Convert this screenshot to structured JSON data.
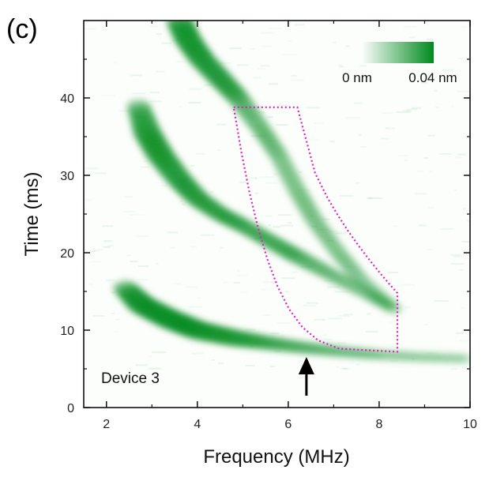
{
  "panel_label": "(c)",
  "chart_data": {
    "type": "heatmap",
    "xlabel": "Frequency (MHz)",
    "ylabel": "Time (ms)",
    "xlim": [
      1.5,
      10
    ],
    "ylim": [
      0,
      50
    ],
    "xticks": [
      2,
      4,
      6,
      8,
      10
    ],
    "yticks": [
      0,
      10,
      20,
      30,
      40
    ],
    "minor_ticks": true,
    "grid": false,
    "colorbar": {
      "min_label": "0 nm",
      "max_label": "0.04 nm",
      "min_color": "#ffffff",
      "max_color": "#008a1e",
      "placement": "top-right"
    },
    "annotation_text": "Device 3",
    "arrow": {
      "x": 6.4,
      "pointing": "up"
    },
    "highlight_region": {
      "color": "#e020c8",
      "style": "dotted",
      "corners": [
        [
          4.8,
          38.8
        ],
        [
          6.2,
          38.8
        ],
        [
          8.4,
          14.8
        ],
        [
          8.4,
          7.2
        ]
      ]
    },
    "bands": [
      {
        "name_hidden": true,
        "points": [
          [
            2.4,
            15.5
          ],
          [
            2.8,
            13.2
          ],
          [
            3.4,
            11.4
          ],
          [
            4.0,
            10.0
          ],
          [
            4.8,
            9.0
          ],
          [
            5.6,
            8.3
          ],
          [
            6.4,
            7.7
          ],
          [
            7.2,
            7.2
          ],
          [
            8.0,
            6.8
          ],
          [
            9.0,
            6.5
          ],
          [
            10.0,
            6.3
          ]
        ],
        "intensity": [
          0.55,
          0.85,
          0.9,
          0.85,
          0.7,
          0.45,
          0.3,
          0.2,
          0.14,
          0.1,
          0.06
        ]
      },
      {
        "name_hidden": true,
        "points": [
          [
            2.7,
            39.0
          ],
          [
            2.9,
            35.5
          ],
          [
            3.2,
            32.5
          ],
          [
            3.6,
            29.5
          ],
          [
            4.0,
            27.0
          ],
          [
            4.5,
            25.0
          ],
          [
            5.0,
            23.5
          ],
          [
            5.6,
            21.5
          ],
          [
            6.2,
            19.5
          ],
          [
            7.0,
            17.0
          ],
          [
            7.8,
            14.5
          ],
          [
            8.4,
            12.5
          ]
        ],
        "intensity": [
          0.5,
          0.75,
          0.75,
          0.65,
          0.55,
          0.45,
          0.4,
          0.4,
          0.45,
          0.3,
          0.2,
          0.12
        ]
      },
      {
        "name_hidden": true,
        "points": [
          [
            3.6,
            50.0
          ],
          [
            3.8,
            47.5
          ],
          [
            4.1,
            45.0
          ],
          [
            4.5,
            42.5
          ],
          [
            4.9,
            40.0
          ],
          [
            5.4,
            36.0
          ],
          [
            5.8,
            32.5
          ],
          [
            6.2,
            28.0
          ],
          [
            6.6,
            24.0
          ],
          [
            7.1,
            20.0
          ],
          [
            7.6,
            16.5
          ],
          [
            8.3,
            13.0
          ]
        ],
        "intensity": [
          0.65,
          0.7,
          0.65,
          0.6,
          0.5,
          0.35,
          0.3,
          0.3,
          0.28,
          0.25,
          0.2,
          0.12
        ]
      }
    ]
  }
}
